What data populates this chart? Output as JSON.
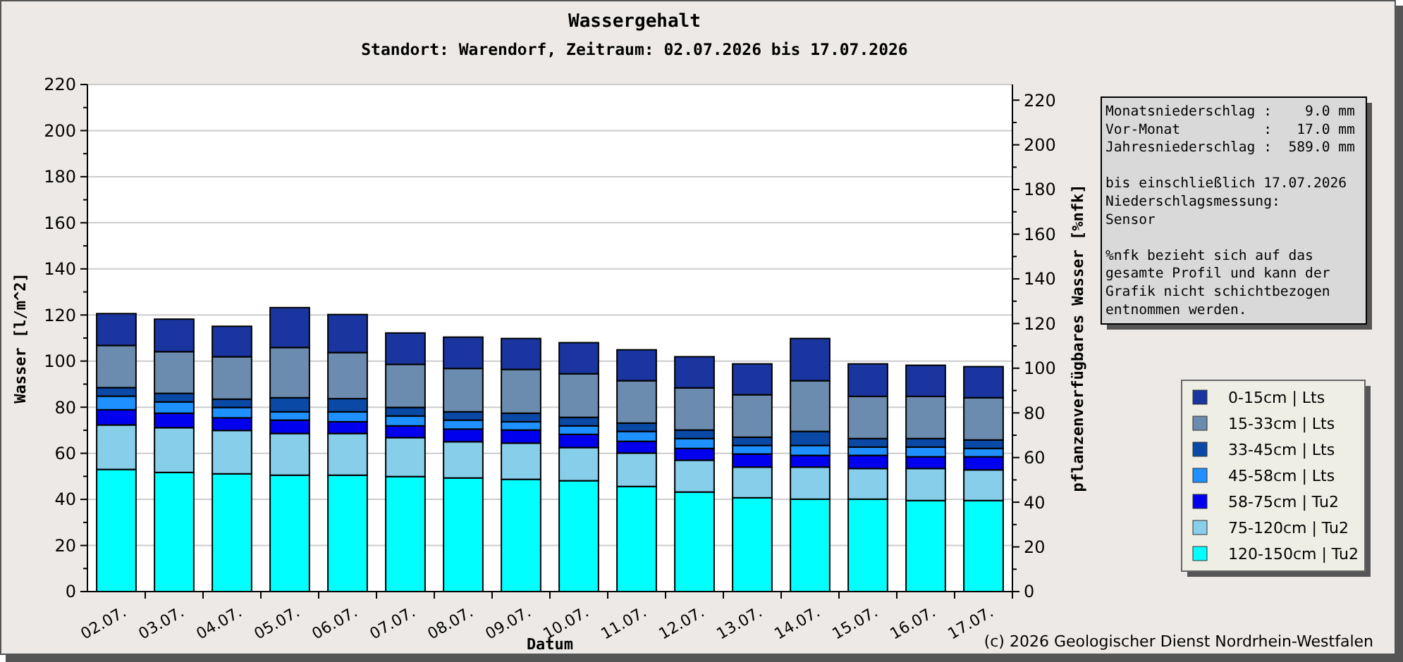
{
  "chart_data": {
    "type": "bar",
    "stacked": true,
    "title": "Wassergehalt",
    "subtitle": "Standort: Warendorf, Zeitraum: 02.07.2026 bis 17.07.2026",
    "xlabel": "Datum",
    "ylabel": "Wasser [l/m^2]",
    "y2label": "pflanzenverfügbares Wasser [%nfk]",
    "categories": [
      "02.07.",
      "03.07.",
      "04.07.",
      "05.07.",
      "06.07.",
      "07.07.",
      "08.07.",
      "09.07.",
      "10.07.",
      "11.07.",
      "12.07.",
      "13.07.",
      "14.07.",
      "15.07.",
      "16.07.",
      "17.07."
    ],
    "series": [
      {
        "name": "120-150cm | Tu2",
        "color": "#00ffff",
        "values": [
          53.0,
          51.7,
          51.1,
          50.5,
          50.5,
          49.9,
          49.3,
          48.7,
          48.1,
          45.6,
          43.2,
          40.7,
          40.1,
          40.1,
          39.5,
          39.5
        ]
      },
      {
        "name": "75-120cm | Tu2",
        "color": "#87ceeb",
        "values": [
          19.3,
          19.4,
          18.8,
          18.1,
          18.1,
          16.9,
          15.7,
          15.7,
          14.4,
          14.5,
          13.8,
          13.3,
          13.9,
          13.3,
          13.9,
          13.3
        ]
      },
      {
        "name": "58-75cm | Tu2",
        "color": "#0000ee",
        "values": [
          6.6,
          6.3,
          5.5,
          5.8,
          5.1,
          5.1,
          5.5,
          5.7,
          5.7,
          5.1,
          5.1,
          5.7,
          5.1,
          5.7,
          5.1,
          5.7
        ]
      },
      {
        "name": "45-58cm | Lts",
        "color": "#1e90ff",
        "values": [
          5.9,
          4.9,
          4.5,
          3.6,
          4.3,
          4.3,
          3.9,
          3.6,
          3.7,
          4.3,
          4.3,
          3.7,
          4.3,
          3.6,
          4.2,
          3.6
        ]
      },
      {
        "name": "33-45cm | Lts",
        "color": "#0a4aa6",
        "values": [
          3.7,
          3.7,
          3.6,
          6.1,
          5.7,
          3.7,
          3.6,
          3.7,
          3.7,
          3.6,
          3.7,
          3.6,
          6.1,
          3.7,
          3.7,
          3.7
        ]
      },
      {
        "name": "15-33cm | Lts",
        "color": "#6c8caf",
        "values": [
          18.3,
          18.1,
          18.4,
          21.8,
          20.0,
          18.7,
          18.8,
          19.0,
          18.9,
          18.4,
          18.3,
          18.4,
          22.0,
          18.3,
          18.3,
          18.3
        ]
      },
      {
        "name": "0-15cm | Lts",
        "color": "#1a35a0",
        "values": [
          13.8,
          14.1,
          13.2,
          17.3,
          16.5,
          13.6,
          13.6,
          13.4,
          13.5,
          13.4,
          13.5,
          13.4,
          18.3,
          14.1,
          13.5,
          13.5
        ]
      }
    ],
    "ylim": [
      0,
      220
    ],
    "yticks": [
      0,
      {
        "value": 10,
        "label": null
      },
      20,
      {
        "value": 30,
        "label": null
      },
      40,
      {
        "value": 50,
        "label": null
      },
      60,
      {
        "value": 70,
        "label": null
      },
      80,
      {
        "value": 90,
        "label": null
      },
      100,
      {
        "value": 110,
        "label": null
      },
      120,
      {
        "value": 130,
        "label": null
      },
      140,
      {
        "value": 150,
        "label": null
      },
      160,
      {
        "value": 170,
        "label": null
      },
      180,
      {
        "value": 190,
        "label": null
      },
      200,
      {
        "value": 210,
        "label": null
      },
      220
    ],
    "y2lim": [
      0,
      227
    ],
    "y2ticks": [
      0,
      {
        "value": 10,
        "label": null
      },
      20,
      {
        "value": 30,
        "label": null
      },
      40,
      {
        "value": 50,
        "label": null
      },
      60,
      {
        "value": 70,
        "label": null
      },
      80,
      {
        "value": 90,
        "label": null
      },
      100,
      {
        "value": 110,
        "label": null
      },
      120,
      {
        "value": 130,
        "label": null
      },
      140,
      {
        "value": 150,
        "label": null
      },
      160,
      {
        "value": 170,
        "label": null
      },
      180,
      {
        "value": 190,
        "label": null
      },
      200,
      {
        "value": 210,
        "label": null
      },
      220
    ],
    "grid": "y",
    "legend": "right",
    "annotations": [
      "Monatsniederschlag :    9.0 mm\nVor-Monat          :   17.0 mm\nJahresniederschlag :  589.0 mm\n\nbis einschließlich 17.07.2026\nNiederschlagsmessung:\nSensor\n\n%nfk bezieht sich auf das\ngesamte Profil und kann der\nGrafik nicht schichtbezogen\nentnommen werden.",
      "(c) 2026 Geologischer Dienst Nordrhein-Westfalen"
    ]
  }
}
